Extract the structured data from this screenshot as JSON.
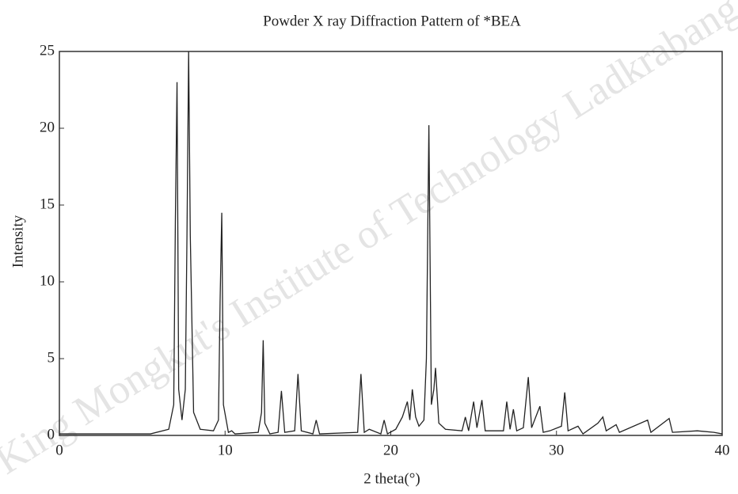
{
  "chart_data": {
    "type": "line",
    "title": "Powder X ray Diffraction Pattern of *BEA",
    "x_label": "2 theta(°)",
    "y_label": "Intensity",
    "watermark": "King Mongkut's Institute of Technology Ladkrabang",
    "color": "#222222",
    "xlim": [
      0,
      40
    ],
    "xticks": [
      0,
      10,
      20,
      30,
      40
    ],
    "ylim": [
      0,
      25
    ],
    "yticks": [
      0,
      5,
      10,
      15,
      20,
      25
    ],
    "grid": false,
    "x": [
      0,
      5.5,
      6.6,
      6.9,
      7.0,
      7.1,
      7.2,
      7.4,
      7.6,
      7.7,
      7.8,
      7.9,
      8.1,
      8.5,
      9.3,
      9.6,
      9.7,
      9.8,
      9.9,
      10.2,
      10.4,
      10.6,
      12.0,
      12.2,
      12.3,
      12.4,
      12.7,
      13.2,
      13.4,
      13.6,
      14.2,
      14.4,
      14.6,
      15.3,
      15.5,
      15.7,
      18.0,
      18.2,
      18.4,
      18.7,
      19.4,
      19.6,
      19.8,
      20.3,
      20.7,
      21.0,
      21.15,
      21.3,
      21.5,
      21.7,
      22.0,
      22.15,
      22.3,
      22.45,
      22.6,
      22.7,
      22.9,
      23.3,
      24.3,
      24.5,
      24.7,
      25.0,
      25.2,
      25.5,
      25.7,
      26.8,
      27.0,
      27.2,
      27.4,
      27.6,
      28.0,
      28.3,
      28.5,
      29.0,
      29.2,
      29.6,
      30.3,
      30.5,
      30.7,
      31.3,
      31.6,
      32.5,
      32.8,
      33.0,
      33.6,
      33.8,
      35.5,
      35.7,
      36.8,
      37.0,
      38.5,
      39.5,
      40
    ],
    "values": [
      0.1,
      0.1,
      0.4,
      2,
      14,
      23,
      3,
      1,
      3,
      13,
      25,
      13,
      1.5,
      0.4,
      0.3,
      1,
      8.8,
      14.5,
      2,
      0.2,
      0.3,
      0.1,
      0.2,
      1.5,
      6.2,
      0.8,
      0.1,
      0.2,
      2.9,
      0.2,
      0.3,
      4.0,
      0.3,
      0.1,
      1.0,
      0.1,
      0.2,
      4.0,
      0.2,
      0.4,
      0.1,
      1.0,
      0.1,
      0.4,
      1.2,
      2.2,
      1.0,
      3.0,
      1.2,
      0.6,
      1.0,
      5,
      20.2,
      2,
      3,
      4.4,
      0.8,
      0.4,
      0.3,
      1.2,
      0.3,
      2.2,
      0.5,
      2.3,
      0.3,
      0.3,
      2.2,
      0.4,
      1.7,
      0.3,
      0.5,
      3.8,
      0.5,
      1.9,
      0.2,
      0.3,
      0.6,
      2.8,
      0.3,
      0.6,
      0.1,
      0.8,
      1.2,
      0.3,
      0.7,
      0.2,
      1.0,
      0.2,
      1.1,
      0.2,
      0.3,
      0.2,
      0.1
    ]
  }
}
